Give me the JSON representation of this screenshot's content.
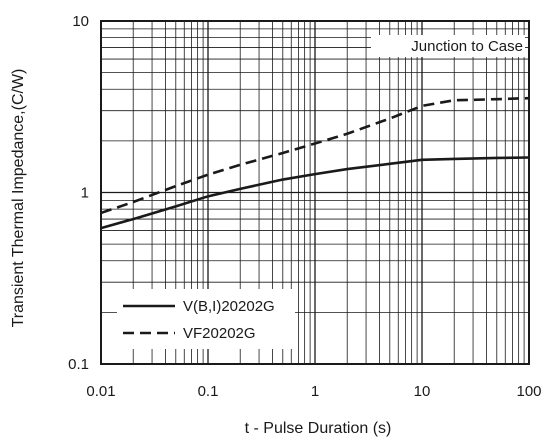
{
  "chart_data": {
    "type": "line",
    "xlabel": "t - Pulse Duration (s)",
    "ylabel": "Transient Thermal Impedance,(C/W)",
    "x_scale": "log",
    "y_scale": "log",
    "xlim": [
      0.01,
      100
    ],
    "ylim": [
      0.1,
      10
    ],
    "x_tick_labels": [
      "0.01",
      "0.1",
      "1",
      "10",
      "100"
    ],
    "y_tick_labels": [
      "0.1",
      "1",
      "10"
    ],
    "grid": true,
    "legend_position": "bottom-left",
    "annotation": "Junction to Case",
    "series": [
      {
        "name": "V(B,I)20202G",
        "line_style": "solid",
        "x": [
          0.01,
          0.02,
          0.05,
          0.1,
          0.2,
          0.5,
          1,
          2,
          5,
          10,
          20,
          50,
          100
        ],
        "y": [
          0.62,
          0.7,
          0.83,
          0.95,
          1.05,
          1.19,
          1.28,
          1.37,
          1.47,
          1.55,
          1.57,
          1.59,
          1.6
        ]
      },
      {
        "name": "VF20202G",
        "line_style": "dashed",
        "x": [
          0.01,
          0.02,
          0.05,
          0.1,
          0.2,
          0.5,
          1,
          2,
          5,
          10,
          20,
          50,
          100
        ],
        "y": [
          0.76,
          0.88,
          1.09,
          1.27,
          1.45,
          1.7,
          1.93,
          2.2,
          2.7,
          3.2,
          3.45,
          3.5,
          3.55
        ]
      }
    ]
  }
}
